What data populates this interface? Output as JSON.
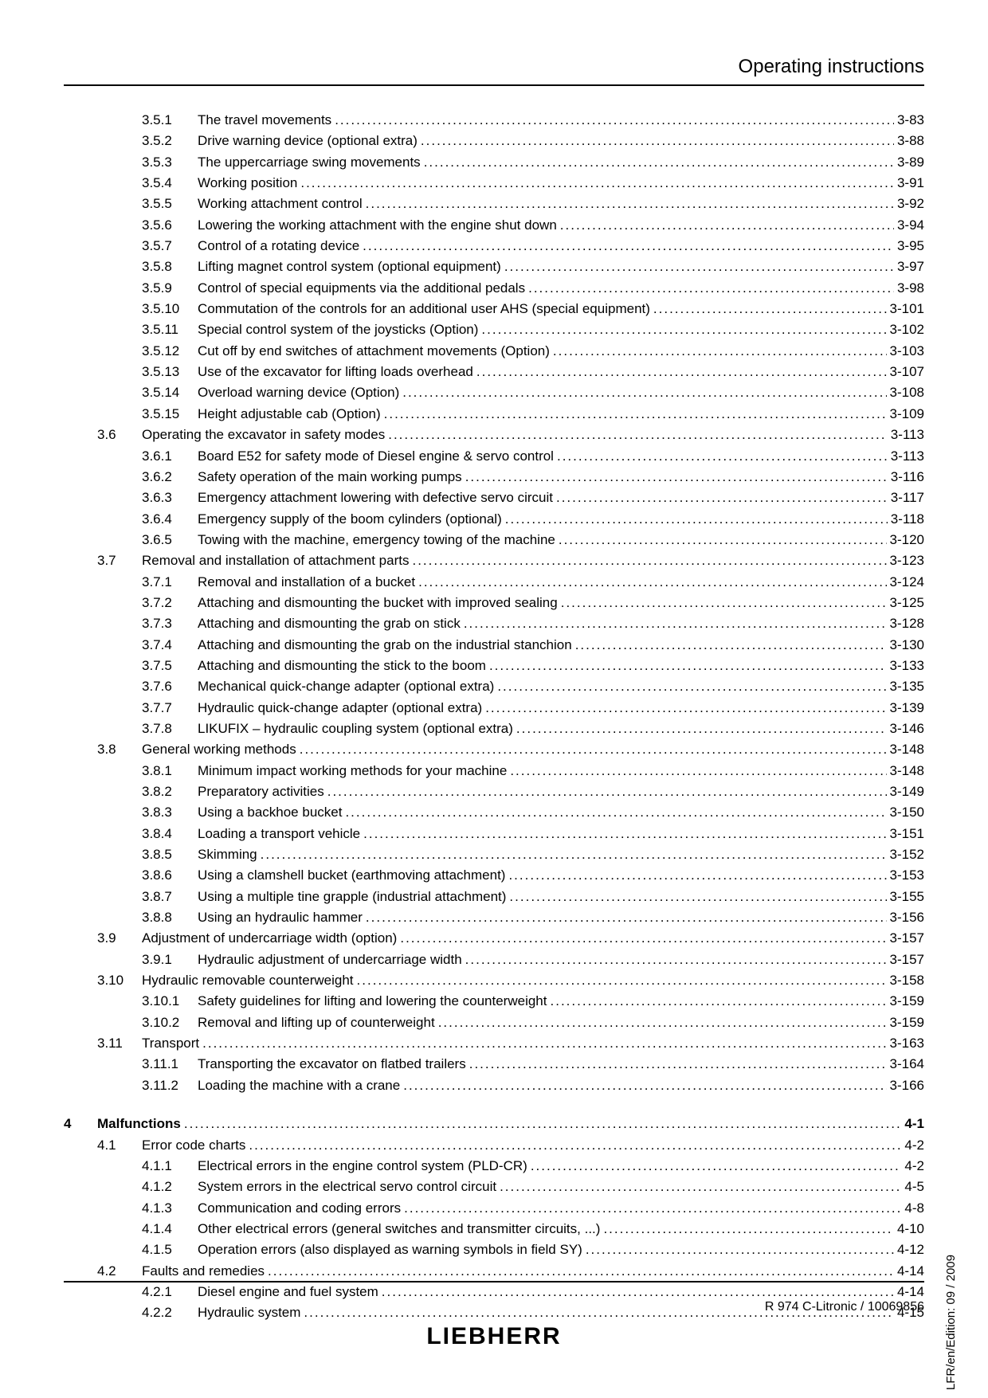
{
  "header": "Operating instructions",
  "footer": "R 974 C-Litronic / 10069856",
  "logo": "LIEBHERR",
  "sideText": "LFR/en/Edition: 09 / 2009",
  "entries": [
    {
      "level": 3,
      "num": "3.5.1",
      "title": "The travel movements",
      "page": "3-83"
    },
    {
      "level": 3,
      "num": "3.5.2",
      "title": "Drive warning device (optional extra)",
      "page": "3-88"
    },
    {
      "level": 3,
      "num": "3.5.3",
      "title": "The uppercarriage swing movements",
      "page": "3-89"
    },
    {
      "level": 3,
      "num": "3.5.4",
      "title": "Working position",
      "page": "3-91"
    },
    {
      "level": 3,
      "num": "3.5.5",
      "title": "Working attachment control",
      "page": "3-92"
    },
    {
      "level": 3,
      "num": "3.5.6",
      "title": "Lowering the working attachment with the engine shut down",
      "page": "3-94"
    },
    {
      "level": 3,
      "num": "3.5.7",
      "title": "Control of a rotating device",
      "page": "3-95"
    },
    {
      "level": 3,
      "num": "3.5.8",
      "title": "Lifting magnet control system (optional equipment)",
      "page": "3-97"
    },
    {
      "level": 3,
      "num": "3.5.9",
      "title": "Control of special equipments via the additional pedals",
      "page": "3-98"
    },
    {
      "level": 3,
      "num": "3.5.10",
      "title": "Commutation of the controls for an additional user AHS (special equipment)",
      "page": "3-101"
    },
    {
      "level": 3,
      "num": "3.5.11",
      "title": "Special control system of the joysticks (Option)",
      "page": "3-102"
    },
    {
      "level": 3,
      "num": "3.5.12",
      "title": "Cut off by end switches of attachment movements (Option)",
      "page": "3-103"
    },
    {
      "level": 3,
      "num": "3.5.13",
      "title": "Use of the excavator for lifting loads overhead",
      "page": "3-107"
    },
    {
      "level": 3,
      "num": "3.5.14",
      "title": "Overload warning device (Option)",
      "page": "3-108"
    },
    {
      "level": 3,
      "num": "3.5.15",
      "title": "Height adjustable cab (Option)",
      "page": "3-109"
    },
    {
      "level": 2,
      "num": "3.6",
      "title": "Operating the excavator in safety modes",
      "page": "3-113"
    },
    {
      "level": 3,
      "num": "3.6.1",
      "title": "Board E52 for safety mode of Diesel engine & servo control",
      "page": "3-113"
    },
    {
      "level": 3,
      "num": "3.6.2",
      "title": "Safety operation of the main working pumps",
      "page": "3-116"
    },
    {
      "level": 3,
      "num": "3.6.3",
      "title": "Emergency attachment lowering with defective servo circuit",
      "page": "3-117"
    },
    {
      "level": 3,
      "num": "3.6.4",
      "title": "Emergency supply of the boom cylinders (optional)",
      "page": "3-118"
    },
    {
      "level": 3,
      "num": "3.6.5",
      "title": "Towing with the machine, emergency towing of the machine",
      "page": "3-120"
    },
    {
      "level": 2,
      "num": "3.7",
      "title": "Removal and installation of attachment parts",
      "page": "3-123"
    },
    {
      "level": 3,
      "num": "3.7.1",
      "title": "Removal and installation of a bucket",
      "page": "3-124"
    },
    {
      "level": 3,
      "num": "3.7.2",
      "title": "Attaching and dismounting the bucket with improved sealing",
      "page": "3-125"
    },
    {
      "level": 3,
      "num": "3.7.3",
      "title": "Attaching and dismounting the grab on stick",
      "page": "3-128"
    },
    {
      "level": 3,
      "num": "3.7.4",
      "title": "Attaching and dismounting the grab on the industrial stanchion",
      "page": "3-130"
    },
    {
      "level": 3,
      "num": "3.7.5",
      "title": "Attaching and dismounting the stick to the boom",
      "page": "3-133"
    },
    {
      "level": 3,
      "num": "3.7.6",
      "title": "Mechanical quick-change adapter (optional extra)",
      "page": "3-135"
    },
    {
      "level": 3,
      "num": "3.7.7",
      "title": "Hydraulic quick-change adapter (optional extra)",
      "page": "3-139"
    },
    {
      "level": 3,
      "num": "3.7.8",
      "title": "LIKUFIX – hydraulic coupling system (optional extra)",
      "page": "3-146"
    },
    {
      "level": 2,
      "num": "3.8",
      "title": "General working methods",
      "page": "3-148"
    },
    {
      "level": 3,
      "num": "3.8.1",
      "title": "Minimum impact working methods for your machine",
      "page": "3-148"
    },
    {
      "level": 3,
      "num": "3.8.2",
      "title": "Preparatory activities",
      "page": "3-149"
    },
    {
      "level": 3,
      "num": "3.8.3",
      "title": "Using a backhoe bucket",
      "page": "3-150"
    },
    {
      "level": 3,
      "num": "3.8.4",
      "title": "Loading a transport vehicle",
      "page": "3-151"
    },
    {
      "level": 3,
      "num": "3.8.5",
      "title": "Skimming",
      "page": "3-152"
    },
    {
      "level": 3,
      "num": "3.8.6",
      "title": "Using a clamshell bucket (earthmoving attachment)",
      "page": "3-153"
    },
    {
      "level": 3,
      "num": "3.8.7",
      "title": "Using a multiple tine grapple (industrial attachment)",
      "page": "3-155"
    },
    {
      "level": 3,
      "num": "3.8.8",
      "title": "Using an hydraulic hammer",
      "page": "3-156"
    },
    {
      "level": 2,
      "num": "3.9",
      "title": "Adjustment of undercarriage width (option)",
      "page": "3-157"
    },
    {
      "level": 3,
      "num": "3.9.1",
      "title": "Hydraulic adjustment of undercarriage width",
      "page": "3-157"
    },
    {
      "level": 2,
      "num": "3.10",
      "title": "Hydraulic removable counterweight",
      "page": "3-158"
    },
    {
      "level": 3,
      "num": "3.10.1",
      "title": "Safety guidelines for lifting and lowering the counterweight",
      "page": "3-159"
    },
    {
      "level": 3,
      "num": "3.10.2",
      "title": "Removal and lifting up of counterweight",
      "page": "3-159"
    },
    {
      "level": 2,
      "num": "3.11",
      "title": "Transport",
      "page": "3-163"
    },
    {
      "level": 3,
      "num": "3.11.1",
      "title": "Transporting the excavator on flatbed trailers",
      "page": "3-164"
    },
    {
      "level": 3,
      "num": "3.11.2",
      "title": "Loading the machine with a crane",
      "page": "3-166"
    },
    {
      "level": 0,
      "gap": true
    },
    {
      "level": 1,
      "num": "4",
      "title": "Malfunctions",
      "page": "4-1"
    },
    {
      "level": 2,
      "num": "4.1",
      "title": "Error code charts",
      "page": "4-2"
    },
    {
      "level": 3,
      "num": "4.1.1",
      "title": "Electrical errors in the engine control system (PLD-CR)",
      "page": "4-2"
    },
    {
      "level": 3,
      "num": "4.1.2",
      "title": "System errors in the electrical servo control circuit",
      "page": "4-5"
    },
    {
      "level": 3,
      "num": "4.1.3",
      "title": "Communication and coding errors",
      "page": "4-8"
    },
    {
      "level": 3,
      "num": "4.1.4",
      "title": "Other electrical errors (general switches and transmitter circuits, ...)",
      "page": "4-10"
    },
    {
      "level": 3,
      "num": "4.1.5",
      "title": "Operation errors (also displayed as warning symbols in field SY)",
      "page": "4-12"
    },
    {
      "level": 2,
      "num": "4.2",
      "title": "Faults and remedies",
      "page": "4-14"
    },
    {
      "level": 3,
      "num": "4.2.1",
      "title": "Diesel engine and fuel system",
      "page": "4-14"
    },
    {
      "level": 3,
      "num": "4.2.2",
      "title": "Hydraulic system",
      "page": "4-15"
    }
  ]
}
